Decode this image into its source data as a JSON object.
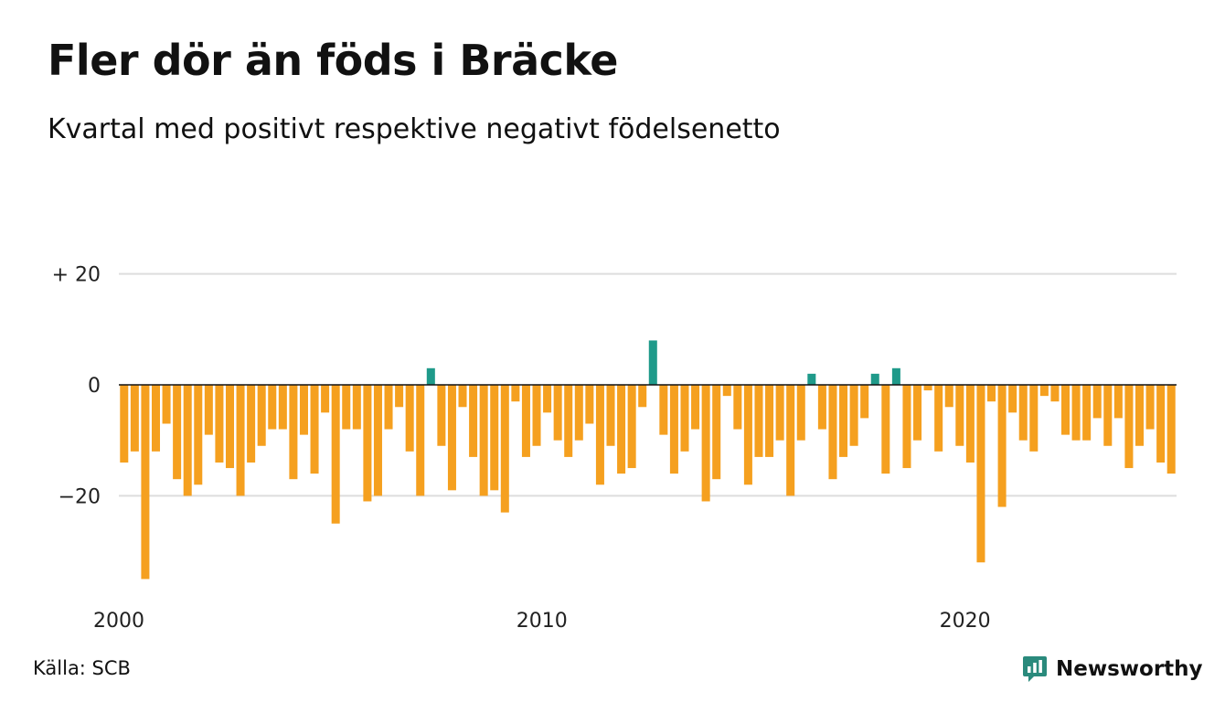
{
  "title": "Fler dör än föds i Bräcke",
  "subtitle": "Kvartal med positivt respektive negativt födelsenetto",
  "source": "Källa: SCB",
  "brand": "Newsworthy",
  "colors": {
    "negative": "#f5a01f",
    "positive": "#1f9a8a",
    "grid": "#dddddd",
    "zero_line": "#111111",
    "brand": "#2a8a7c"
  },
  "chart_data": {
    "type": "bar",
    "x_start": "2000 Q1",
    "x_step": "quarter",
    "y_ticks": [
      {
        "value": 20,
        "label": "+ 20"
      },
      {
        "value": 0,
        "label": "0"
      },
      {
        "value": -20,
        "label": "−20"
      }
    ],
    "x_ticks": [
      "2000",
      "2010",
      "2020"
    ],
    "ylim": [
      -36,
      20
    ],
    "grid": true,
    "values": [
      -14,
      -12,
      -35,
      -12,
      -7,
      -17,
      -20,
      -18,
      -9,
      -14,
      -15,
      -20,
      -14,
      -11,
      -8,
      -8,
      -17,
      -9,
      -16,
      -5,
      -25,
      -8,
      -8,
      -21,
      -20,
      -8,
      -4,
      -12,
      -20,
      3,
      -11,
      -19,
      -4,
      -13,
      -20,
      -19,
      -23,
      -3,
      -13,
      -11,
      -5,
      -10,
      -13,
      -10,
      -7,
      -18,
      -11,
      -16,
      -15,
      -4,
      8,
      -9,
      -16,
      -12,
      -8,
      -21,
      -17,
      -2,
      -8,
      -18,
      -13,
      -13,
      -10,
      -20,
      -10,
      2,
      -8,
      -17,
      -13,
      -11,
      -6,
      2,
      -16,
      3,
      -15,
      -10,
      -1,
      -12,
      -4,
      -11,
      -14,
      -32,
      -3,
      -22,
      -5,
      -10,
      -12,
      -2,
      -3,
      -9,
      -10,
      -10,
      -6,
      -11,
      -6,
      -15,
      -11,
      -8,
      -14,
      -16
    ]
  }
}
